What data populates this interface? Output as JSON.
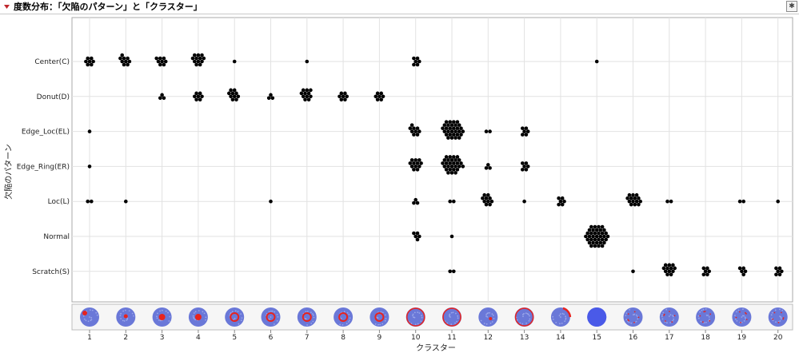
{
  "title": "度数分布：「欠陥のパターン」と「クラスター」",
  "chart_data": {
    "type": "scatter",
    "xlabel": "クラスター",
    "ylabel": "欠陥のパターン",
    "x_categories": [
      "1",
      "2",
      "3",
      "4",
      "5",
      "6",
      "7",
      "8",
      "9",
      "10",
      "11",
      "12",
      "13",
      "14",
      "15",
      "16",
      "17",
      "18",
      "19",
      "20"
    ],
    "y_categories": [
      "Center(C)",
      "Donut(D)",
      "Edge_Loc(EL)",
      "Edge_Ring(ER)",
      "Loc(L)",
      "Normal",
      "Scratch(S)"
    ],
    "grid": true,
    "wafer_row": true,
    "counts": [
      {
        "pattern": "Center(C)",
        "values": [
          7,
          9,
          8,
          12,
          1,
          0,
          1,
          0,
          0,
          6,
          0,
          0,
          0,
          0,
          1,
          0,
          0,
          0,
          0,
          0
        ]
      },
      {
        "pattern": "Donut(D)",
        "values": [
          0,
          0,
          3,
          7,
          10,
          3,
          11,
          7,
          7,
          0,
          0,
          0,
          0,
          0,
          0,
          0,
          0,
          0,
          0,
          0
        ]
      },
      {
        "pattern": "Edge_Loc(EL)",
        "values": [
          1,
          0,
          0,
          0,
          0,
          0,
          0,
          0,
          0,
          9,
          30,
          2,
          6,
          0,
          0,
          0,
          0,
          0,
          0,
          0
        ]
      },
      {
        "pattern": "Edge_Ring(ER)",
        "values": [
          1,
          0,
          0,
          0,
          0,
          0,
          0,
          0,
          0,
          12,
          28,
          3,
          6,
          0,
          0,
          0,
          0,
          0,
          0,
          0
        ]
      },
      {
        "pattern": "Loc(L)",
        "values": [
          2,
          1,
          0,
          0,
          0,
          1,
          0,
          0,
          0,
          3,
          2,
          10,
          1,
          6,
          0,
          14,
          2,
          0,
          2,
          1
        ]
      },
      {
        "pattern": "Normal",
        "values": [
          0,
          0,
          0,
          0,
          0,
          0,
          0,
          0,
          0,
          5,
          1,
          0,
          0,
          0,
          37,
          0,
          0,
          0,
          0,
          0
        ]
      },
      {
        "pattern": "Scratch(S)",
        "values": [
          0,
          0,
          0,
          0,
          0,
          0,
          0,
          0,
          0,
          0,
          2,
          0,
          0,
          0,
          0,
          1,
          12,
          6,
          5,
          6
        ]
      }
    ],
    "wafer_colors": {
      "background": "#6a78d8",
      "defect": "#e8231e",
      "speckle": "#9aa6ea"
    }
  }
}
